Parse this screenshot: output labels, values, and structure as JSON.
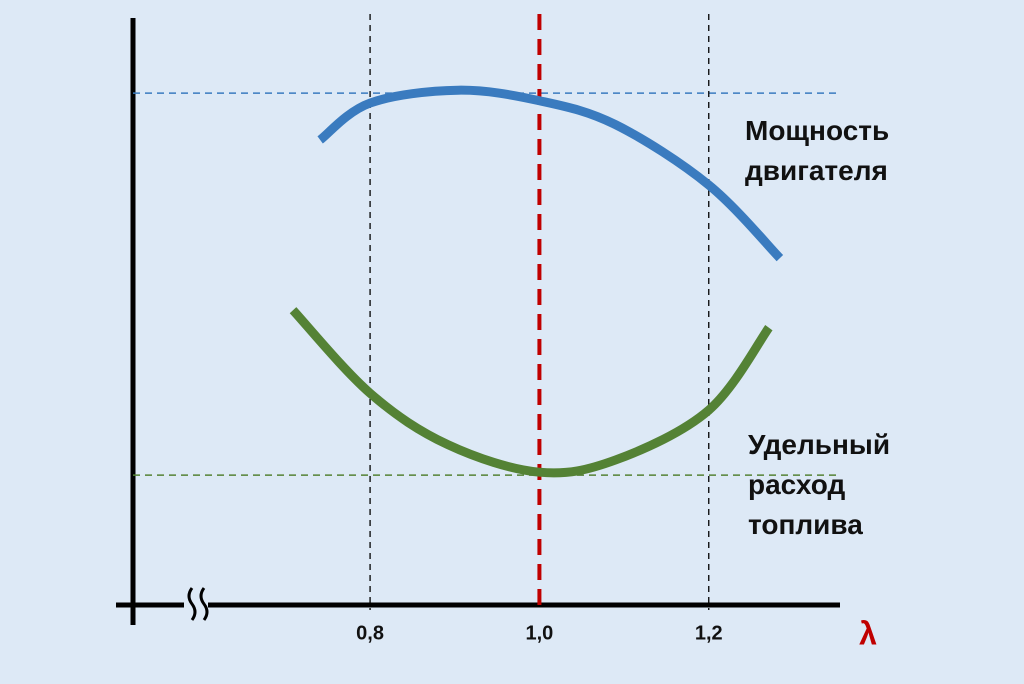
{
  "chart_data": {
    "type": "line",
    "x_label": "λ",
    "xlim": [
      0.52,
      1.355
    ],
    "ylim": [
      0,
      100
    ],
    "xticks": [
      {
        "value": 0.8,
        "label": "0,8"
      },
      {
        "value": 1.0,
        "label": "1,0"
      },
      {
        "value": 1.2,
        "label": "1,2"
      }
    ],
    "highlight_tick_index": 1,
    "highlight_color": "#c00000",
    "series": [
      {
        "name": "Мощность двигателя",
        "color": "#3a7bbf",
        "x": [
          0.741,
          0.8,
          0.904,
          1.0,
          1.09,
          1.2,
          1.284
        ],
        "values": [
          79.5,
          85.8,
          88.0,
          86.2,
          82.1,
          71.8,
          59.3
        ],
        "reference": 87.5
      },
      {
        "name": "Удельный расход топлива",
        "color": "#548235",
        "x": [
          0.709,
          0.8,
          0.892,
          1.0,
          1.09,
          1.2,
          1.271
        ],
        "values": [
          50.4,
          36.2,
          27.4,
          22.7,
          24.8,
          33.3,
          47.4
        ],
        "reference": 22.2
      }
    ]
  }
}
